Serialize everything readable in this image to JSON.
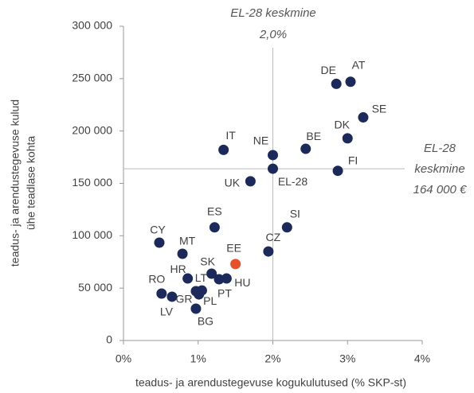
{
  "chart_data": {
    "type": "scatter",
    "xlabel": "teadus- ja arendustegevuse kogukulutused (% SKP-st)",
    "ylabel": [
      "teadus- ja arendustegevuse kulud",
      "ühe teadlase kohta"
    ],
    "xlim": [
      0,
      4
    ],
    "ylim": [
      0,
      300000
    ],
    "xticks": [
      {
        "value": 0,
        "label": "0%"
      },
      {
        "value": 1,
        "label": "1%"
      },
      {
        "value": 2,
        "label": "2%"
      },
      {
        "value": 3,
        "label": "3%"
      },
      {
        "value": 4,
        "label": "4%"
      }
    ],
    "yticks": [
      0,
      {
        "value": 50000,
        "label": "50 000"
      },
      {
        "value": 100000,
        "label": "100 000"
      },
      {
        "value": 150000,
        "label": "150 000"
      },
      {
        "value": 200000,
        "label": "200 000"
      },
      {
        "value": 250000,
        "label": "250 000"
      },
      {
        "value": 300000,
        "label": "300 000"
      }
    ],
    "ref_x": 2.0,
    "ref_y": 164000,
    "ref_x_label": [
      "EL-28 keskmine",
      "2,0%"
    ],
    "ref_y_label": [
      "EL-28",
      "keskmine",
      "164 000 €"
    ],
    "points": [
      {
        "label": "DE",
        "x": 2.85,
        "y": 245000,
        "color": "#1b2a5a"
      },
      {
        "label": "AT",
        "x": 3.04,
        "y": 247000,
        "color": "#1b2a5a"
      },
      {
        "label": "SE",
        "x": 3.21,
        "y": 213000,
        "color": "#1b2a5a"
      },
      {
        "label": "DK",
        "x": 3.0,
        "y": 193000,
        "color": "#1b2a5a"
      },
      {
        "label": "FI",
        "x": 2.87,
        "y": 162000,
        "color": "#1b2a5a"
      },
      {
        "label": "BE",
        "x": 2.44,
        "y": 183000,
        "color": "#1b2a5a"
      },
      {
        "label": "NE",
        "x": 2.0,
        "y": 177000,
        "color": "#1b2a5a"
      },
      {
        "label": "EL-28",
        "x": 2.0,
        "y": 164000,
        "color": "#1b2a5a"
      },
      {
        "label": "IT",
        "x": 1.34,
        "y": 182000,
        "color": "#1b2a5a"
      },
      {
        "label": "UK",
        "x": 1.7,
        "y": 152000,
        "color": "#1b2a5a"
      },
      {
        "label": "ES",
        "x": 1.22,
        "y": 108000,
        "color": "#1b2a5a"
      },
      {
        "label": "SI",
        "x": 2.19,
        "y": 108000,
        "color": "#1b2a5a"
      },
      {
        "label": "CZ",
        "x": 1.94,
        "y": 85000,
        "color": "#1b2a5a"
      },
      {
        "label": "CY",
        "x": 0.48,
        "y": 93400,
        "color": "#1b2a5a"
      },
      {
        "label": "MT",
        "x": 0.79,
        "y": 82800,
        "color": "#1b2a5a"
      },
      {
        "label": "EE",
        "x": 1.5,
        "y": 73000,
        "color": "#e8502a"
      },
      {
        "label": "SK",
        "x": 1.18,
        "y": 63800,
        "color": "#1b2a5a"
      },
      {
        "label": "HR",
        "x": 0.86,
        "y": 59200,
        "color": "#1b2a5a"
      },
      {
        "label": "HU",
        "x": 1.38,
        "y": 59200,
        "color": "#1b2a5a"
      },
      {
        "label": "PT",
        "x": 1.28,
        "y": 58500,
        "color": "#1b2a5a"
      },
      {
        "label": "LT",
        "x": 1.05,
        "y": 47800,
        "color": "#1b2a5a"
      },
      {
        "label": "RO",
        "x": 0.51,
        "y": 44800,
        "color": "#1b2a5a"
      },
      {
        "label": "LV",
        "x": 0.65,
        "y": 41800,
        "color": "#1b2a5a"
      },
      {
        "label": "GR",
        "x": 0.97,
        "y": 47100,
        "color": "#1b2a5a"
      },
      {
        "label": "PL",
        "x": 1.01,
        "y": 44000,
        "color": "#1b2a5a"
      },
      {
        "label": "BG",
        "x": 0.97,
        "y": 30400,
        "color": "#1b2a5a"
      }
    ]
  }
}
